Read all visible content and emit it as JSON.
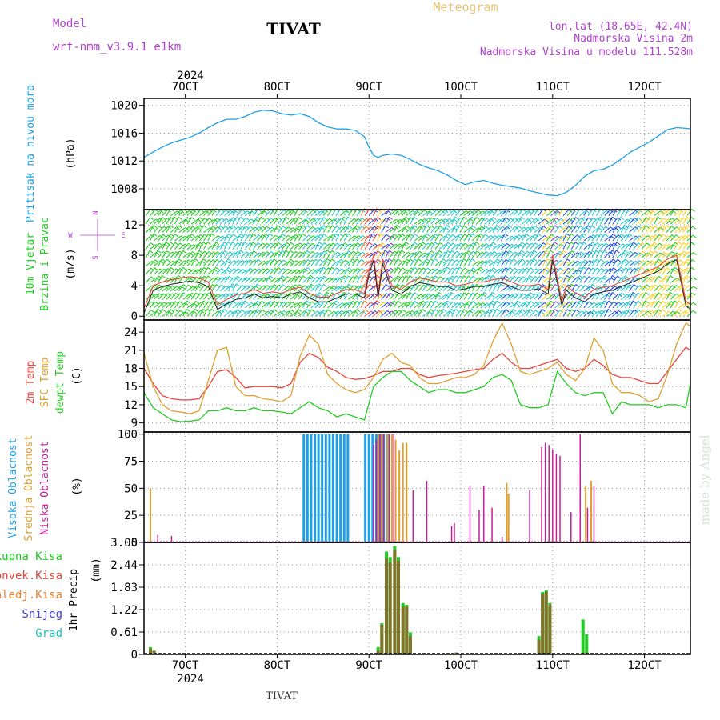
{
  "header": {
    "model_label": "Model",
    "model_name": "wrf-nmm_v3.9.1 e1km",
    "title": "TIVAT",
    "meteogram_label": "Meteogram",
    "lonlat": "lon,lat (18.65E, 42.4N)",
    "elevation": "Nadmorska Visina 2m",
    "model_elevation": "Nadmorska Visina u modelu 111.528m",
    "watermark": "made by Angel",
    "footer_title": "TIVAT"
  },
  "colors": {
    "pressure": "#1ea0e6",
    "temp2m": "#e8453c",
    "sfctemp": "#e0a030",
    "dewpt": "#22cc22",
    "high_cloud": "#1ea0e6",
    "mid_cloud": "#e0a030",
    "low_cloud": "#c0209a",
    "total_precip": "#22cc22",
    "conv_precip": "#e8453c",
    "freezing": "#f08030",
    "snow": "#4040e0",
    "hail": "#20c0c0",
    "purple_text": "#b040d0",
    "meteogram_text": "#e6c070"
  },
  "time_axis": {
    "year_top": "2024",
    "year_bottom": "2024",
    "ticks": [
      "7OCT",
      "8OCT",
      "9OCT",
      "10OCT",
      "11OCT",
      "12OCT"
    ],
    "tick_times": [
      7,
      8,
      9,
      10,
      11,
      12
    ],
    "range": [
      6.55,
      12.5
    ]
  },
  "compass": {
    "n": "N",
    "w": "W",
    "e": "E",
    "s": "S"
  },
  "chart_data": [
    {
      "type": "line",
      "id": "pressure",
      "ylabel_main": "Pritisak na nivou mora",
      "ylabel_unit": "(hPa)",
      "ylim": [
        1005,
        1021
      ],
      "yticks": [
        1008,
        1012,
        1016,
        1020
      ],
      "grid": true,
      "series": [
        {
          "x": [
            6.55,
            6.65,
            6.75,
            6.85,
            6.95,
            7.05,
            7.15,
            7.25,
            7.35,
            7.45,
            7.55,
            7.65,
            7.75,
            7.85,
            7.95,
            8.05,
            8.15,
            8.25,
            8.35,
            8.45,
            8.55,
            8.65,
            8.75,
            8.85,
            8.95,
            9.0,
            9.05,
            9.1,
            9.15,
            9.25,
            9.35,
            9.45,
            9.55,
            9.65,
            9.75,
            9.85,
            9.95,
            10.05,
            10.15,
            10.25,
            10.35,
            10.45,
            10.55,
            10.65,
            10.75,
            10.85,
            10.95,
            11.05,
            11.15,
            11.25,
            11.35,
            11.45,
            11.55,
            11.65,
            11.75,
            11.85,
            11.95,
            12.05,
            12.15,
            12.25,
            12.35,
            12.45,
            12.5
          ],
          "values": [
            1012.5,
            1013.3,
            1014.0,
            1014.6,
            1015.0,
            1015.4,
            1016.0,
            1016.8,
            1017.5,
            1018.0,
            1018.0,
            1018.4,
            1019.0,
            1019.3,
            1019.2,
            1018.8,
            1018.6,
            1018.8,
            1018.4,
            1017.5,
            1016.9,
            1016.6,
            1016.6,
            1016.4,
            1015.5,
            1014.0,
            1012.8,
            1012.5,
            1012.8,
            1013.0,
            1012.8,
            1012.2,
            1011.5,
            1011.0,
            1010.6,
            1010.0,
            1009.2,
            1008.6,
            1009.0,
            1009.2,
            1008.8,
            1008.5,
            1008.3,
            1008.1,
            1007.7,
            1007.4,
            1007.1,
            1007.0,
            1007.5,
            1008.5,
            1009.8,
            1010.6,
            1010.8,
            1011.4,
            1012.3,
            1013.3,
            1014.0,
            1014.7,
            1015.6,
            1016.5,
            1016.8,
            1016.7,
            1016.6
          ]
        }
      ]
    },
    {
      "type": "line",
      "id": "wind",
      "ylabel_main": "10m Vjetar",
      "ylabel_sub": "Brzina i Pravac",
      "ylabel_unit": "(m/s)",
      "ylim": [
        -0.5,
        14
      ],
      "yticks": [
        0,
        4,
        8,
        12
      ],
      "grid": true,
      "series": [
        {
          "name": "speed",
          "x": [
            6.55,
            6.65,
            6.75,
            6.85,
            6.95,
            7.05,
            7.15,
            7.25,
            7.35,
            7.45,
            7.55,
            7.65,
            7.75,
            7.85,
            7.95,
            8.05,
            8.15,
            8.25,
            8.35,
            8.45,
            8.55,
            8.65,
            8.75,
            8.85,
            8.95,
            9.0,
            9.05,
            9.1,
            9.15,
            9.25,
            9.35,
            9.45,
            9.55,
            9.65,
            9.75,
            9.85,
            9.95,
            10.05,
            10.15,
            10.25,
            10.35,
            10.45,
            10.55,
            10.65,
            10.75,
            10.85,
            10.95,
            11.0,
            11.05,
            11.1,
            11.15,
            11.25,
            11.35,
            11.45,
            11.55,
            11.65,
            11.75,
            11.85,
            11.95,
            12.05,
            12.15,
            12.25,
            12.35,
            12.45,
            12.5
          ],
          "values": [
            1.0,
            4.0,
            4.5,
            4.8,
            5.0,
            5.2,
            5.0,
            4.5,
            1.5,
            2.2,
            2.8,
            3.0,
            3.5,
            3.0,
            3.2,
            3.0,
            3.5,
            3.8,
            3.0,
            2.5,
            2.5,
            3.0,
            3.5,
            3.5,
            3.0,
            6.0,
            8.0,
            3.0,
            7.5,
            4.0,
            3.5,
            4.5,
            5.0,
            4.8,
            4.5,
            4.5,
            4.0,
            4.2,
            4.5,
            4.5,
            4.8,
            5.0,
            4.5,
            4.0,
            4.0,
            4.2,
            3.5,
            8.0,
            5.0,
            2.0,
            4.0,
            3.0,
            2.5,
            3.5,
            3.8,
            4.0,
            4.5,
            5.0,
            5.5,
            6.0,
            6.5,
            7.5,
            8.0,
            2.0,
            1.5
          ]
        }
      ]
    },
    {
      "type": "line",
      "id": "temperature",
      "ylabel_main": "2m Temp",
      "ylabel_sub": "SFC Temp",
      "ylabel_sub2": "dewpt Temp",
      "ylabel_unit": "(C)",
      "ylim": [
        7.5,
        26
      ],
      "yticks": [
        9,
        12,
        15,
        18,
        21,
        24
      ],
      "grid": true,
      "series": [
        {
          "name": "2m Temp",
          "x": [
            6.55,
            6.65,
            6.75,
            6.85,
            6.95,
            7.05,
            7.15,
            7.25,
            7.35,
            7.45,
            7.55,
            7.65,
            7.75,
            7.85,
            7.95,
            8.05,
            8.15,
            8.25,
            8.35,
            8.45,
            8.55,
            8.65,
            8.75,
            8.85,
            8.95,
            9.05,
            9.15,
            9.25,
            9.35,
            9.45,
            9.55,
            9.65,
            9.75,
            9.85,
            9.95,
            10.05,
            10.15,
            10.25,
            10.35,
            10.45,
            10.55,
            10.65,
            10.75,
            10.85,
            10.95,
            11.05,
            11.15,
            11.25,
            11.35,
            11.45,
            11.55,
            11.65,
            11.75,
            11.85,
            11.95,
            12.05,
            12.15,
            12.25,
            12.35,
            12.45,
            12.5
          ],
          "values": [
            18.0,
            15.5,
            13.5,
            13.0,
            12.8,
            12.8,
            13.0,
            15.0,
            17.5,
            17.8,
            16.5,
            14.8,
            15.0,
            15.0,
            15.0,
            14.8,
            15.5,
            19.0,
            20.5,
            19.8,
            18.2,
            17.5,
            16.5,
            16.2,
            16.3,
            16.8,
            17.5,
            17.5,
            18.0,
            18.0,
            17.0,
            16.5,
            16.8,
            17.0,
            17.2,
            17.5,
            17.8,
            18.0,
            19.5,
            20.5,
            19.0,
            18.0,
            18.0,
            18.5,
            19.0,
            19.5,
            18.0,
            17.5,
            18.0,
            19.5,
            18.5,
            17.0,
            16.5,
            16.5,
            16.0,
            15.5,
            15.5,
            17.5,
            19.5,
            21.5,
            21.0
          ]
        },
        {
          "name": "SFC Temp",
          "x": [
            6.55,
            6.65,
            6.75,
            6.85,
            6.95,
            7.05,
            7.15,
            7.25,
            7.35,
            7.45,
            7.55,
            7.65,
            7.75,
            7.85,
            7.95,
            8.05,
            8.15,
            8.25,
            8.35,
            8.45,
            8.55,
            8.65,
            8.75,
            8.85,
            8.95,
            9.05,
            9.15,
            9.25,
            9.35,
            9.45,
            9.55,
            9.65,
            9.75,
            9.85,
            9.95,
            10.05,
            10.15,
            10.25,
            10.35,
            10.45,
            10.55,
            10.65,
            10.75,
            10.85,
            10.95,
            11.05,
            11.15,
            11.25,
            11.35,
            11.45,
            11.55,
            11.65,
            11.75,
            11.85,
            11.95,
            12.05,
            12.15,
            12.25,
            12.35,
            12.45,
            12.5
          ],
          "values": [
            20.5,
            15.0,
            12.0,
            11.0,
            10.8,
            10.5,
            11.0,
            16.0,
            21.0,
            21.5,
            15.0,
            13.5,
            13.5,
            13.0,
            12.8,
            12.5,
            13.5,
            20.0,
            23.5,
            22.0,
            17.0,
            15.5,
            14.5,
            14.0,
            14.5,
            16.5,
            19.5,
            20.5,
            19.0,
            18.5,
            16.5,
            15.5,
            15.5,
            16.0,
            16.5,
            16.5,
            17.0,
            18.5,
            22.5,
            25.5,
            22.0,
            17.5,
            17.0,
            17.5,
            18.0,
            19.0,
            17.0,
            16.0,
            18.0,
            23.0,
            21.0,
            15.5,
            14.0,
            14.0,
            13.5,
            12.5,
            13.0,
            17.0,
            22.0,
            25.5,
            25.0
          ]
        },
        {
          "name": "dewpt Temp",
          "x": [
            6.55,
            6.65,
            6.75,
            6.85,
            6.95,
            7.05,
            7.15,
            7.25,
            7.35,
            7.45,
            7.55,
            7.65,
            7.75,
            7.85,
            7.95,
            8.05,
            8.15,
            8.25,
            8.35,
            8.45,
            8.55,
            8.65,
            8.75,
            8.85,
            8.95,
            9.05,
            9.15,
            9.25,
            9.35,
            9.45,
            9.55,
            9.65,
            9.75,
            9.85,
            9.95,
            10.05,
            10.15,
            10.25,
            10.35,
            10.45,
            10.55,
            10.65,
            10.75,
            10.85,
            10.95,
            11.05,
            11.15,
            11.25,
            11.35,
            11.45,
            11.55,
            11.65,
            11.75,
            11.85,
            11.95,
            12.05,
            12.15,
            12.25,
            12.35,
            12.45,
            12.5
          ],
          "values": [
            14.0,
            11.5,
            10.5,
            9.5,
            9.2,
            9.3,
            9.5,
            11.0,
            11.0,
            11.5,
            11.0,
            11.0,
            11.5,
            11.0,
            11.0,
            10.8,
            10.5,
            11.5,
            12.5,
            11.5,
            11.0,
            10.0,
            10.5,
            10.0,
            9.5,
            15.0,
            16.5,
            17.5,
            17.5,
            16.0,
            15.0,
            14.0,
            14.5,
            14.5,
            14.0,
            14.0,
            14.5,
            15.0,
            16.5,
            17.0,
            16.0,
            12.0,
            11.5,
            11.5,
            12.0,
            17.5,
            15.5,
            14.0,
            13.5,
            14.0,
            14.0,
            10.5,
            12.5,
            12.0,
            12.0,
            12.0,
            11.5,
            12.0,
            12.0,
            11.5,
            15.5
          ]
        }
      ]
    },
    {
      "type": "bar",
      "id": "clouds",
      "ylabel_main": "Visoka Oblacnost",
      "ylabel_sub": "Srednja Oblacnost",
      "ylabel_sub2": "Niska Oblacnost",
      "ylabel_unit": "(%)",
      "ylim": [
        0,
        102
      ],
      "yticks": [
        0,
        25,
        50,
        75,
        100
      ],
      "grid": true,
      "series": [
        {
          "name": "Visoka Oblacnost",
          "x": [
            8.29,
            8.33,
            8.37,
            8.41,
            8.45,
            8.49,
            8.53,
            8.57,
            8.61,
            8.65,
            8.69,
            8.73,
            8.77,
            8.96,
            9.0,
            9.04,
            9.08,
            9.12,
            9.16,
            9.2
          ],
          "values": [
            100,
            100,
            100,
            100,
            100,
            100,
            100,
            100,
            100,
            100,
            100,
            100,
            100,
            100,
            100,
            100,
            100,
            100,
            100,
            100
          ]
        },
        {
          "name": "Srednja Oblacnost",
          "x": [
            6.62,
            9.1,
            9.14,
            9.2,
            9.25,
            9.29,
            9.33,
            9.37,
            9.41,
            10.5,
            10.52,
            11.36,
            11.42
          ],
          "values": [
            50,
            100,
            100,
            100,
            100,
            95,
            85,
            92,
            92,
            55,
            45,
            52,
            57
          ]
        },
        {
          "name": "Niska Oblacnost",
          "x": [
            6.7,
            6.85,
            9.05,
            9.08,
            9.12,
            9.16,
            9.22,
            9.27,
            9.48,
            9.63,
            9.9,
            9.93,
            10.1,
            10.2,
            10.25,
            10.34,
            10.45,
            10.75,
            10.88,
            10.92,
            10.96,
            11.0,
            11.04,
            11.08,
            11.2,
            11.3,
            11.38,
            11.45
          ],
          "values": [
            7,
            6,
            90,
            95,
            100,
            100,
            100,
            100,
            48,
            57,
            15,
            18,
            52,
            30,
            52,
            32,
            5,
            48,
            88,
            92,
            90,
            86,
            82,
            80,
            28,
            100,
            32,
            52
          ]
        }
      ]
    },
    {
      "type": "bar",
      "id": "precip",
      "ylabel_main": "1hr Precip",
      "ylabel_unit": "(mm)",
      "legend": [
        "Ukupna Kisa",
        "Konvek.Kisa",
        "Zaledj.Kisa",
        "Snijeg",
        "Grad"
      ],
      "ylim": [
        0,
        3.05
      ],
      "yticks": [
        0,
        0.61,
        1.22,
        1.83,
        2.44,
        3.05
      ],
      "ytick_labels": [
        "0",
        "0.61",
        "1.22",
        "1.83",
        "2.44",
        "3.05"
      ],
      "grid": true,
      "series": [
        {
          "name": "Ukupna Kisa",
          "x": [
            6.62,
            6.66,
            9.1,
            9.14,
            9.19,
            9.23,
            9.28,
            9.32,
            9.37,
            9.41,
            9.45,
            9.95,
            10.85,
            10.89,
            10.93,
            10.97,
            11.33,
            11.37
          ],
          "values": [
            0.2,
            0.1,
            0.2,
            0.85,
            2.8,
            2.65,
            2.95,
            2.65,
            1.4,
            1.35,
            0.6,
            0.05,
            0.5,
            1.7,
            1.75,
            1.4,
            0.95,
            0.55
          ]
        },
        {
          "name": "Konvek.Kisa",
          "x": [
            6.62,
            6.66,
            9.1,
            9.14,
            9.19,
            9.23,
            9.28,
            9.32,
            9.37,
            9.41,
            9.45,
            9.95,
            10.85,
            10.89,
            10.93,
            10.97,
            11.33,
            11.37
          ],
          "values": [
            0.15,
            0.1,
            0.1,
            0.8,
            2.6,
            2.5,
            2.85,
            2.55,
            1.3,
            1.3,
            0.5,
            0.05,
            0.4,
            1.65,
            1.7,
            1.35,
            0.05,
            0.05
          ]
        }
      ]
    }
  ]
}
